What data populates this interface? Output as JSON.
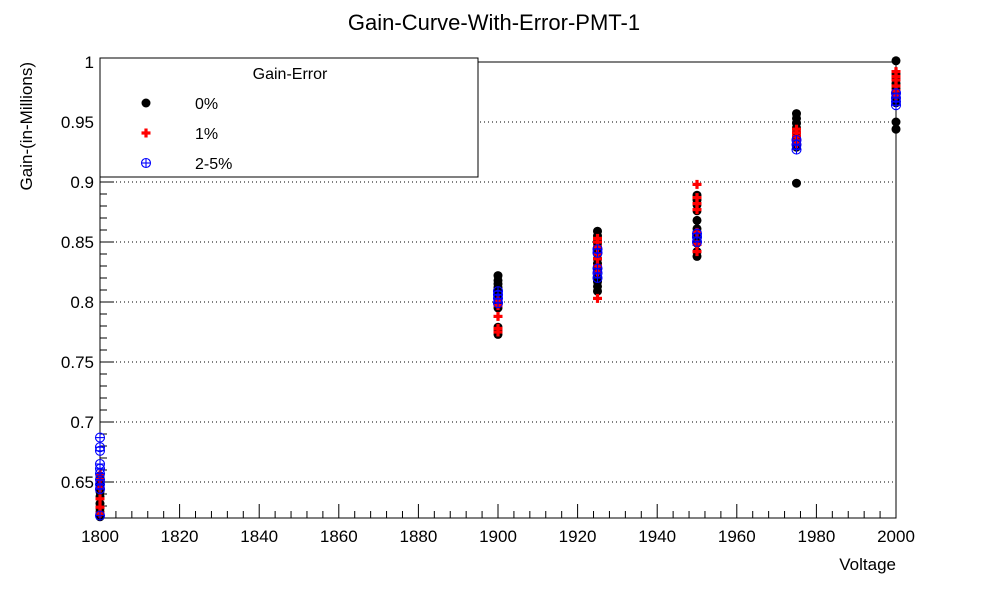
{
  "chart_data": {
    "type": "scatter",
    "title": "Gain-Curve-With-Error-PMT-1",
    "xlabel": "Voltage",
    "ylabel": "Gain-(in-Millions)",
    "xlim": [
      1800,
      2000
    ],
    "ylim": [
      0.62,
      1.0
    ],
    "x_ticks": [
      1800,
      1820,
      1840,
      1860,
      1880,
      1900,
      1920,
      1940,
      1960,
      1980,
      2000
    ],
    "y_ticks": [
      0.65,
      0.7,
      0.75,
      0.8,
      0.85,
      0.9,
      0.95,
      1.0
    ],
    "y_tick_labels": [
      "0.65",
      "0.7",
      "0.75",
      "0.8",
      "0.85",
      "0.9",
      "0.95",
      "1"
    ],
    "grid": "horizontal dotted",
    "legend": {
      "title": "Gain-Error",
      "placement": "top-left",
      "entries": [
        "0%",
        "1%",
        "2-5%"
      ]
    },
    "series": [
      {
        "name": "0%",
        "color": "#000000",
        "marker": "filled-circle",
        "points": [
          [
            1800,
            0.621
          ],
          [
            1800,
            0.625
          ],
          [
            1800,
            0.628
          ],
          [
            1800,
            0.632
          ],
          [
            1800,
            0.638
          ],
          [
            1800,
            0.642
          ],
          [
            1800,
            0.646
          ],
          [
            1800,
            0.65
          ],
          [
            1800,
            0.655
          ],
          [
            1900,
            0.773
          ],
          [
            1900,
            0.776
          ],
          [
            1900,
            0.779
          ],
          [
            1900,
            0.795
          ],
          [
            1900,
            0.799
          ],
          [
            1900,
            0.802
          ],
          [
            1900,
            0.806
          ],
          [
            1900,
            0.809
          ],
          [
            1900,
            0.812
          ],
          [
            1900,
            0.815
          ],
          [
            1900,
            0.818
          ],
          [
            1900,
            0.822
          ],
          [
            1925,
            0.809
          ],
          [
            1925,
            0.813
          ],
          [
            1925,
            0.817
          ],
          [
            1925,
            0.821
          ],
          [
            1925,
            0.828
          ],
          [
            1925,
            0.832
          ],
          [
            1925,
            0.836
          ],
          [
            1925,
            0.841
          ],
          [
            1925,
            0.845
          ],
          [
            1925,
            0.849
          ],
          [
            1925,
            0.852
          ],
          [
            1925,
            0.855
          ],
          [
            1925,
            0.859
          ],
          [
            1950,
            0.838
          ],
          [
            1950,
            0.842
          ],
          [
            1950,
            0.849
          ],
          [
            1950,
            0.855
          ],
          [
            1950,
            0.861
          ],
          [
            1950,
            0.868
          ],
          [
            1950,
            0.876
          ],
          [
            1950,
            0.881
          ],
          [
            1950,
            0.885
          ],
          [
            1950,
            0.889
          ],
          [
            1975,
            0.899
          ],
          [
            1975,
            0.929
          ],
          [
            1975,
            0.933
          ],
          [
            1975,
            0.937
          ],
          [
            1975,
            0.941
          ],
          [
            1975,
            0.945
          ],
          [
            1975,
            0.949
          ],
          [
            1975,
            0.953
          ],
          [
            1975,
            0.957
          ],
          [
            2000,
            0.944
          ],
          [
            2000,
            0.95
          ],
          [
            2000,
            0.966
          ],
          [
            2000,
            0.97
          ],
          [
            2000,
            0.974
          ],
          [
            2000,
            0.978
          ],
          [
            2000,
            0.982
          ],
          [
            2000,
            0.986
          ],
          [
            2000,
            0.99
          ],
          [
            2000,
            1.001
          ]
        ]
      },
      {
        "name": "1%",
        "color": "#ff0000",
        "marker": "plus",
        "points": [
          [
            1800,
            0.624
          ],
          [
            1800,
            0.629
          ],
          [
            1800,
            0.636
          ],
          [
            1800,
            0.645
          ],
          [
            1800,
            0.652
          ],
          [
            1800,
            0.656
          ],
          [
            1900,
            0.775
          ],
          [
            1900,
            0.778
          ],
          [
            1900,
            0.788
          ],
          [
            1900,
            0.797
          ],
          [
            1900,
            0.801
          ],
          [
            1925,
            0.803
          ],
          [
            1925,
            0.825
          ],
          [
            1925,
            0.83
          ],
          [
            1925,
            0.836
          ],
          [
            1925,
            0.84
          ],
          [
            1925,
            0.846
          ],
          [
            1925,
            0.85
          ],
          [
            1925,
            0.853
          ],
          [
            1950,
            0.842
          ],
          [
            1950,
            0.848
          ],
          [
            1950,
            0.858
          ],
          [
            1950,
            0.877
          ],
          [
            1950,
            0.882
          ],
          [
            1950,
            0.887
          ],
          [
            1950,
            0.898
          ],
          [
            1975,
            0.932
          ],
          [
            1975,
            0.935
          ],
          [
            1975,
            0.938
          ],
          [
            1975,
            0.941
          ],
          [
            1975,
            0.944
          ],
          [
            2000,
            0.972
          ],
          [
            2000,
            0.976
          ],
          [
            2000,
            0.98
          ],
          [
            2000,
            0.985
          ],
          [
            2000,
            0.988
          ],
          [
            2000,
            0.992
          ]
        ]
      },
      {
        "name": "2-5%",
        "color": "#0000ff",
        "marker": "circle-plus",
        "points": [
          [
            1800,
            0.622
          ],
          [
            1800,
            0.644
          ],
          [
            1800,
            0.648
          ],
          [
            1800,
            0.652
          ],
          [
            1800,
            0.657
          ],
          [
            1800,
            0.661
          ],
          [
            1800,
            0.665
          ],
          [
            1800,
            0.676
          ],
          [
            1800,
            0.679
          ],
          [
            1800,
            0.687
          ],
          [
            1900,
            0.799
          ],
          [
            1900,
            0.803
          ],
          [
            1900,
            0.806
          ],
          [
            1900,
            0.809
          ],
          [
            1925,
            0.82
          ],
          [
            1925,
            0.824
          ],
          [
            1925,
            0.828
          ],
          [
            1925,
            0.841
          ],
          [
            1925,
            0.844
          ],
          [
            1950,
            0.85
          ],
          [
            1950,
            0.854
          ],
          [
            1950,
            0.857
          ],
          [
            1975,
            0.927
          ],
          [
            1975,
            0.931
          ],
          [
            1975,
            0.935
          ],
          [
            2000,
            0.964
          ],
          [
            2000,
            0.967
          ],
          [
            2000,
            0.97
          ],
          [
            2000,
            0.974
          ]
        ]
      }
    ]
  }
}
